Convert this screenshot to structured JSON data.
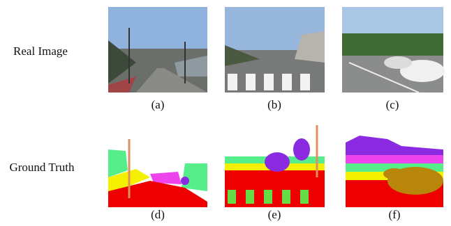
{
  "rows": [
    {
      "label": "Real Image",
      "panels": [
        "(a)",
        "(b)",
        "(c)"
      ]
    },
    {
      "label": "Ground Truth",
      "panels": [
        "(d)",
        "(e)",
        "(f)"
      ]
    }
  ]
}
